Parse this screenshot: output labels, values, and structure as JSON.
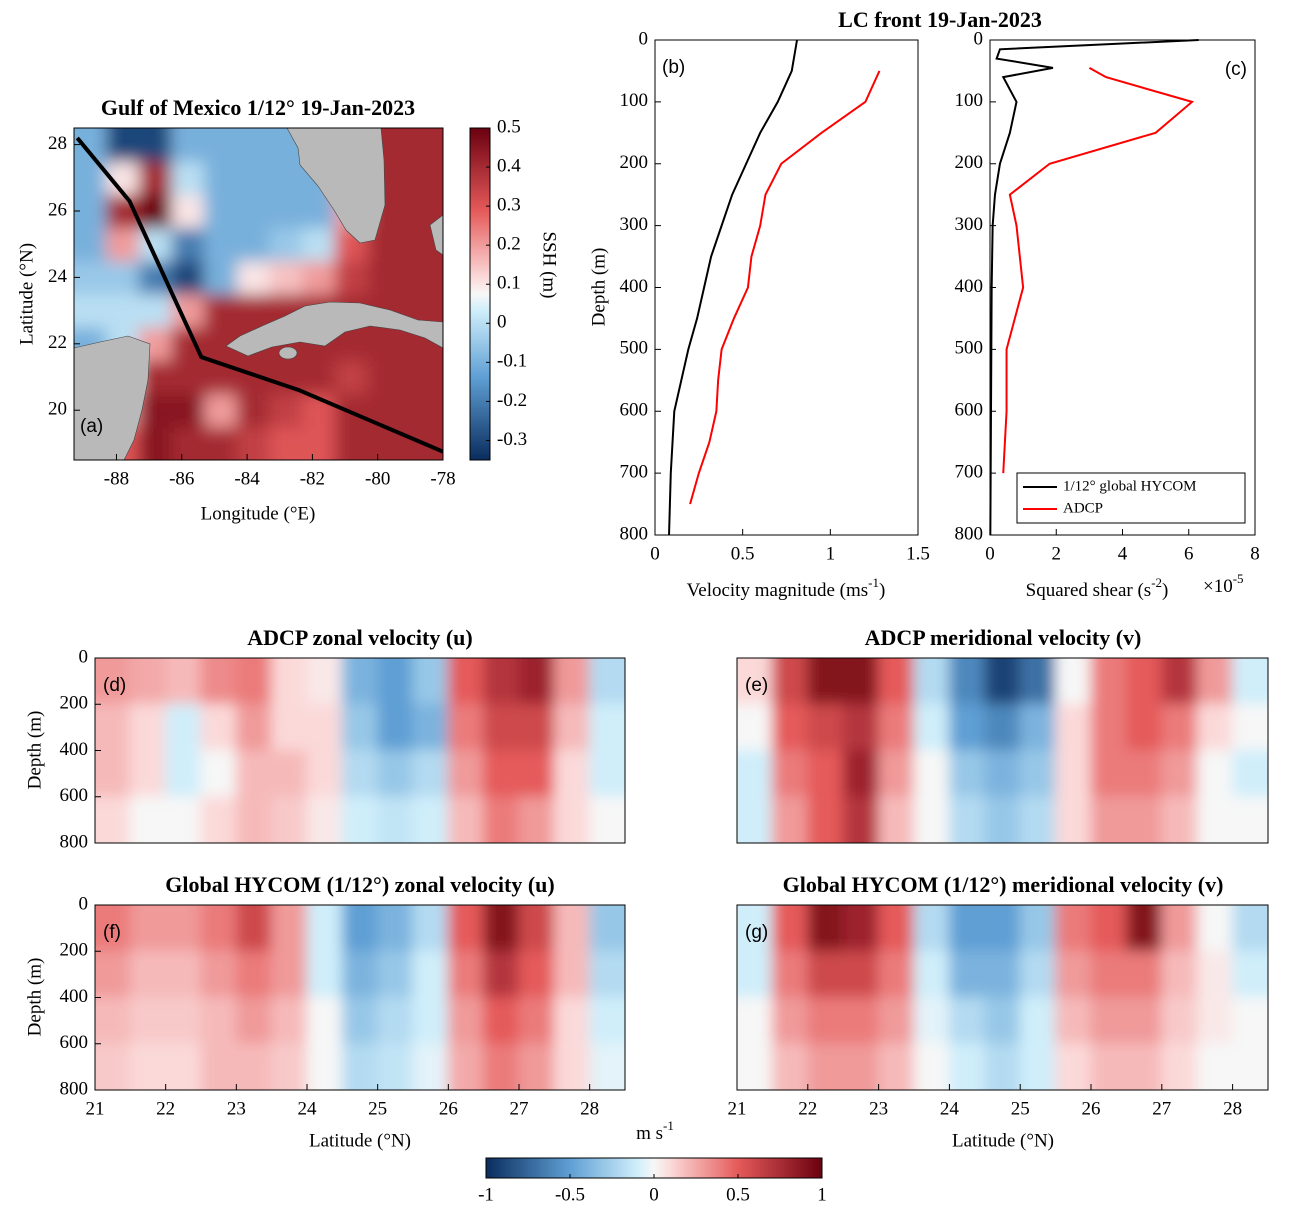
{
  "chart_data": [
    {
      "type": "map",
      "title": "Gulf of Mexico 1/12° 19-Jan-2023",
      "panel_label": "(a)",
      "xlabel": "Longitude (°E)",
      "ylabel": "Latitude (°N)",
      "xlim": [
        -89.3,
        -78
      ],
      "ylim": [
        18.5,
        28.5
      ],
      "xticks": [
        -88,
        -86,
        -84,
        -82,
        -80,
        -78
      ],
      "yticks": [
        20,
        22,
        24,
        26,
        28
      ],
      "x": [
        -88.8,
        -87.8,
        -86.8,
        -85.8,
        -84.8,
        -83.8,
        -82.8,
        -81.8,
        -80.8,
        -79.8,
        -78.8
      ],
      "y": [
        19,
        20,
        21,
        22,
        23,
        24,
        25,
        26,
        27,
        28
      ],
      "z": [
        [
          -0.1,
          0.3,
          0.45,
          0.4,
          0.4,
          0.35,
          0.3,
          0.3,
          0.4,
          0.4,
          0.4
        ],
        [
          -0.1,
          0.2,
          0.45,
          0.45,
          0.2,
          0.4,
          0.35,
          0.3,
          0.4,
          0.4,
          0.4
        ],
        [
          -0.1,
          0.1,
          0.4,
          0.4,
          0.4,
          0.4,
          0.4,
          0.4,
          0.35,
          0.4,
          0.4
        ],
        [
          -0.1,
          0.0,
          0.2,
          0.4,
          0.4,
          0.4,
          0.4,
          0.4,
          0.4,
          0.4,
          0.4
        ],
        [
          0.0,
          0.0,
          0.0,
          0.2,
          0.4,
          0.4,
          0.4,
          0.4,
          0.4,
          0.4,
          0.4
        ],
        [
          -0.05,
          -0.05,
          -0.2,
          -0.3,
          -0.1,
          0.1,
          0.15,
          0.2,
          0.35,
          0.4,
          0.4
        ],
        [
          -0.1,
          0.2,
          0.0,
          -0.2,
          -0.1,
          -0.1,
          -0.05,
          0.0,
          0.3,
          0.4,
          0.4
        ],
        [
          -0.1,
          0.4,
          0.5,
          0.1,
          -0.1,
          -0.1,
          -0.1,
          -0.1,
          0.2,
          0.4,
          0.4
        ],
        [
          -0.1,
          0.1,
          0.4,
          0.0,
          -0.1,
          -0.1,
          -0.1,
          -0.1,
          0.2,
          0.4,
          0.4
        ],
        [
          -0.1,
          -0.3,
          -0.3,
          -0.1,
          -0.1,
          -0.1,
          -0.1,
          -0.1,
          0.3,
          0.4,
          0.4
        ]
      ],
      "clim": [
        -0.35,
        0.5
      ],
      "colorbar": {
        "label": "SSH (m)",
        "ticks": [
          -0.3,
          -0.2,
          -0.1,
          0,
          0.1,
          0.2,
          0.3,
          0.4,
          0.5
        ]
      },
      "track": {
        "color": "#000000",
        "x": [
          -89.2,
          -87.6,
          -85.4,
          -82.4,
          -78
        ],
        "y": [
          28.2,
          26.3,
          21.6,
          20.6,
          18.75
        ]
      }
    },
    {
      "type": "line",
      "title": "LC front 19-Jan-2023",
      "panel_label": "(b)",
      "xlabel": [
        {
          "text": "Velocity magnitude (ms"
        },
        {
          "text": "-1",
          "sup": true
        },
        {
          "text": ")"
        }
      ],
      "ylabel": "Depth (m)",
      "xlim": [
        0,
        1.5
      ],
      "xticks": [
        0,
        0.5,
        1,
        1.5
      ],
      "ylim": [
        0,
        800
      ],
      "yticks": [
        0,
        100,
        200,
        300,
        400,
        500,
        600,
        700,
        800
      ],
      "y_reversed": true,
      "depth": [
        0,
        50,
        100,
        150,
        200,
        250,
        300,
        350,
        400,
        450,
        500,
        550,
        600,
        650,
        700,
        750,
        800
      ],
      "series": [
        {
          "color": "#000000",
          "values": [
            0.81,
            0.78,
            0.7,
            0.6,
            0.52,
            0.44,
            0.38,
            0.32,
            0.28,
            0.24,
            0.19,
            0.15,
            0.11,
            0.1,
            0.09,
            0.085,
            0.08
          ]
        },
        {
          "color": "#ff0000",
          "values": [
            null,
            1.28,
            1.2,
            0.95,
            0.72,
            0.63,
            0.6,
            0.55,
            0.53,
            0.45,
            0.38,
            0.36,
            0.35,
            0.31,
            0.25,
            0.2,
            null
          ]
        }
      ]
    },
    {
      "type": "line",
      "panel_label": "(c)",
      "xlabel": [
        {
          "text": "Squared shear (s"
        },
        {
          "text": "-2",
          "sup": true
        },
        {
          "text": ")"
        }
      ],
      "multiplier": [
        {
          "text": "×10"
        },
        {
          "text": "-5",
          "sup": true
        }
      ],
      "xlim": [
        0,
        8
      ],
      "xticks": [
        0,
        2,
        4,
        6,
        8
      ],
      "ylim": [
        0,
        800
      ],
      "yticks": [
        0,
        100,
        200,
        300,
        400,
        500,
        600,
        700,
        800
      ],
      "y_reversed": true,
      "depth": [
        0,
        15,
        30,
        45,
        60,
        100,
        150,
        200,
        250,
        300,
        400,
        500,
        600,
        700,
        800
      ],
      "series": [
        {
          "name": "1/12° global HYCOM",
          "color": "#000000",
          "values": [
            6.3,
            0.3,
            0.2,
            1.9,
            0.4,
            0.8,
            0.6,
            0.3,
            0.15,
            0.08,
            0.05,
            0.04,
            0.03,
            0.02,
            0.01
          ]
        },
        {
          "name": "ADCP",
          "color": "#ff0000",
          "values": [
            null,
            null,
            null,
            3.0,
            3.5,
            6.1,
            5.0,
            1.8,
            0.6,
            0.8,
            1.0,
            0.5,
            0.5,
            0.4,
            null
          ]
        }
      ],
      "legend": "lower right"
    },
    {
      "type": "heatmap",
      "title": "ADCP zonal velocity (u)",
      "panel_label": "(d)",
      "ylabel": "Depth (m)",
      "xlim": [
        21,
        28.5
      ],
      "ylim": [
        0,
        800
      ],
      "yticks": [
        0,
        200,
        400,
        600,
        800
      ],
      "y_reversed": true,
      "x": [
        21.25,
        21.75,
        22.25,
        22.75,
        23.25,
        23.75,
        24.25,
        24.75,
        25.25,
        25.75,
        26.25,
        26.75,
        27.25,
        27.75,
        28.25
      ],
      "y": [
        100,
        300,
        500,
        700
      ],
      "z": [
        [
          0.3,
          0.25,
          0.2,
          0.35,
          0.4,
          0.1,
          0.05,
          -0.4,
          -0.5,
          -0.3,
          0.5,
          0.7,
          0.8,
          0.3,
          -0.2
        ],
        [
          0.2,
          0.1,
          -0.1,
          0.1,
          0.3,
          0.1,
          0.1,
          -0.3,
          -0.5,
          -0.4,
          0.4,
          0.6,
          0.6,
          0.2,
          -0.1
        ],
        [
          0.2,
          0.1,
          -0.1,
          0.0,
          0.2,
          0.2,
          0.1,
          -0.2,
          -0.3,
          -0.2,
          0.3,
          0.5,
          0.5,
          0.1,
          -0.1
        ],
        [
          0.1,
          0.0,
          0.0,
          0.1,
          0.2,
          0.15,
          0.05,
          -0.1,
          -0.15,
          -0.1,
          0.2,
          0.4,
          0.3,
          0.1,
          0.0
        ]
      ]
    },
    {
      "type": "heatmap",
      "title": "ADCP meridional velocity (v)",
      "panel_label": "(e)",
      "xlim": [
        21,
        28.5
      ],
      "ylim": [
        0,
        800
      ],
      "y_reversed": true,
      "x": [
        21.25,
        21.75,
        22.25,
        22.75,
        23.25,
        23.75,
        24.25,
        24.75,
        25.25,
        25.75,
        26.25,
        26.75,
        27.25,
        27.75,
        28.25
      ],
      "y": [
        100,
        300,
        500,
        700
      ],
      "z": [
        [
          0.1,
          0.6,
          0.9,
          0.9,
          0.5,
          -0.2,
          -0.6,
          -0.9,
          -0.7,
          0.0,
          0.4,
          0.5,
          0.7,
          0.3,
          -0.1
        ],
        [
          0.0,
          0.5,
          0.6,
          0.7,
          0.4,
          -0.1,
          -0.5,
          -0.6,
          -0.4,
          0.1,
          0.4,
          0.5,
          0.4,
          0.1,
          0.0
        ],
        [
          -0.1,
          0.4,
          0.5,
          0.8,
          0.3,
          0.0,
          -0.3,
          -0.4,
          -0.3,
          0.1,
          0.4,
          0.4,
          0.3,
          0.0,
          -0.1
        ],
        [
          -0.1,
          0.3,
          0.5,
          0.7,
          0.2,
          0.0,
          -0.2,
          -0.3,
          -0.2,
          0.1,
          0.3,
          0.3,
          0.2,
          0.0,
          0.0
        ]
      ]
    },
    {
      "type": "heatmap",
      "title": "Global HYCOM (1/12°) zonal velocity (u)",
      "panel_label": "(f)",
      "ylabel": "Depth (m)",
      "xlabel": "Latitude (°N)",
      "xlim": [
        21,
        28.5
      ],
      "xticks": [
        21,
        22,
        23,
        24,
        25,
        26,
        27,
        28
      ],
      "ylim": [
        0,
        800
      ],
      "yticks": [
        0,
        200,
        400,
        600,
        800
      ],
      "y_reversed": true,
      "x": [
        21.25,
        21.75,
        22.25,
        22.75,
        23.25,
        23.75,
        24.25,
        24.75,
        25.25,
        25.75,
        26.25,
        26.75,
        27.25,
        27.75,
        28.25
      ],
      "y": [
        100,
        300,
        500,
        700
      ],
      "z": [
        [
          0.4,
          0.3,
          0.3,
          0.4,
          0.6,
          0.3,
          -0.1,
          -0.5,
          -0.4,
          -0.2,
          0.5,
          0.9,
          0.6,
          0.2,
          -0.3
        ],
        [
          0.3,
          0.2,
          0.2,
          0.3,
          0.4,
          0.3,
          -0.1,
          -0.4,
          -0.3,
          -0.1,
          0.4,
          0.7,
          0.5,
          0.2,
          -0.2
        ],
        [
          0.2,
          0.15,
          0.15,
          0.2,
          0.3,
          0.2,
          0.0,
          -0.3,
          -0.2,
          -0.1,
          0.3,
          0.5,
          0.4,
          0.1,
          -0.1
        ],
        [
          0.15,
          0.1,
          0.1,
          0.2,
          0.2,
          0.15,
          0.0,
          -0.2,
          -0.15,
          -0.05,
          0.25,
          0.4,
          0.3,
          0.1,
          -0.05
        ]
      ]
    },
    {
      "type": "heatmap",
      "title": "Global HYCOM (1/12°) meridional velocity (v)",
      "panel_label": "(g)",
      "xlabel": "Latitude (°N)",
      "xlim": [
        21,
        28.5
      ],
      "xticks": [
        21,
        22,
        23,
        24,
        25,
        26,
        27,
        28
      ],
      "ylim": [
        0,
        800
      ],
      "y_reversed": true,
      "x": [
        21.25,
        21.75,
        22.25,
        22.75,
        23.25,
        23.75,
        24.25,
        24.75,
        25.25,
        25.75,
        26.25,
        26.75,
        27.25,
        27.75,
        28.25
      ],
      "y": [
        100,
        300,
        500,
        700
      ],
      "z": [
        [
          -0.1,
          0.5,
          0.9,
          0.8,
          0.5,
          -0.2,
          -0.5,
          -0.5,
          -0.3,
          0.4,
          0.5,
          0.9,
          0.3,
          0.0,
          -0.2
        ],
        [
          -0.1,
          0.4,
          0.6,
          0.6,
          0.4,
          -0.1,
          -0.4,
          -0.4,
          -0.2,
          0.3,
          0.4,
          0.4,
          0.2,
          0.05,
          -0.1
        ],
        [
          0.0,
          0.3,
          0.4,
          0.4,
          0.3,
          -0.05,
          -0.2,
          -0.3,
          -0.1,
          0.2,
          0.3,
          0.3,
          0.15,
          0.05,
          0.0
        ],
        [
          0.0,
          0.2,
          0.3,
          0.3,
          0.2,
          0.0,
          -0.1,
          -0.2,
          -0.1,
          0.1,
          0.2,
          0.2,
          0.1,
          0.0,
          0.0
        ]
      ]
    },
    {
      "type": "colorbar",
      "label": [
        {
          "text": "m s"
        },
        {
          "text": "-1",
          "sup": true
        }
      ],
      "clim": [
        -1,
        1
      ],
      "ticks": [
        -1,
        -0.5,
        0,
        0.5,
        1
      ]
    }
  ]
}
